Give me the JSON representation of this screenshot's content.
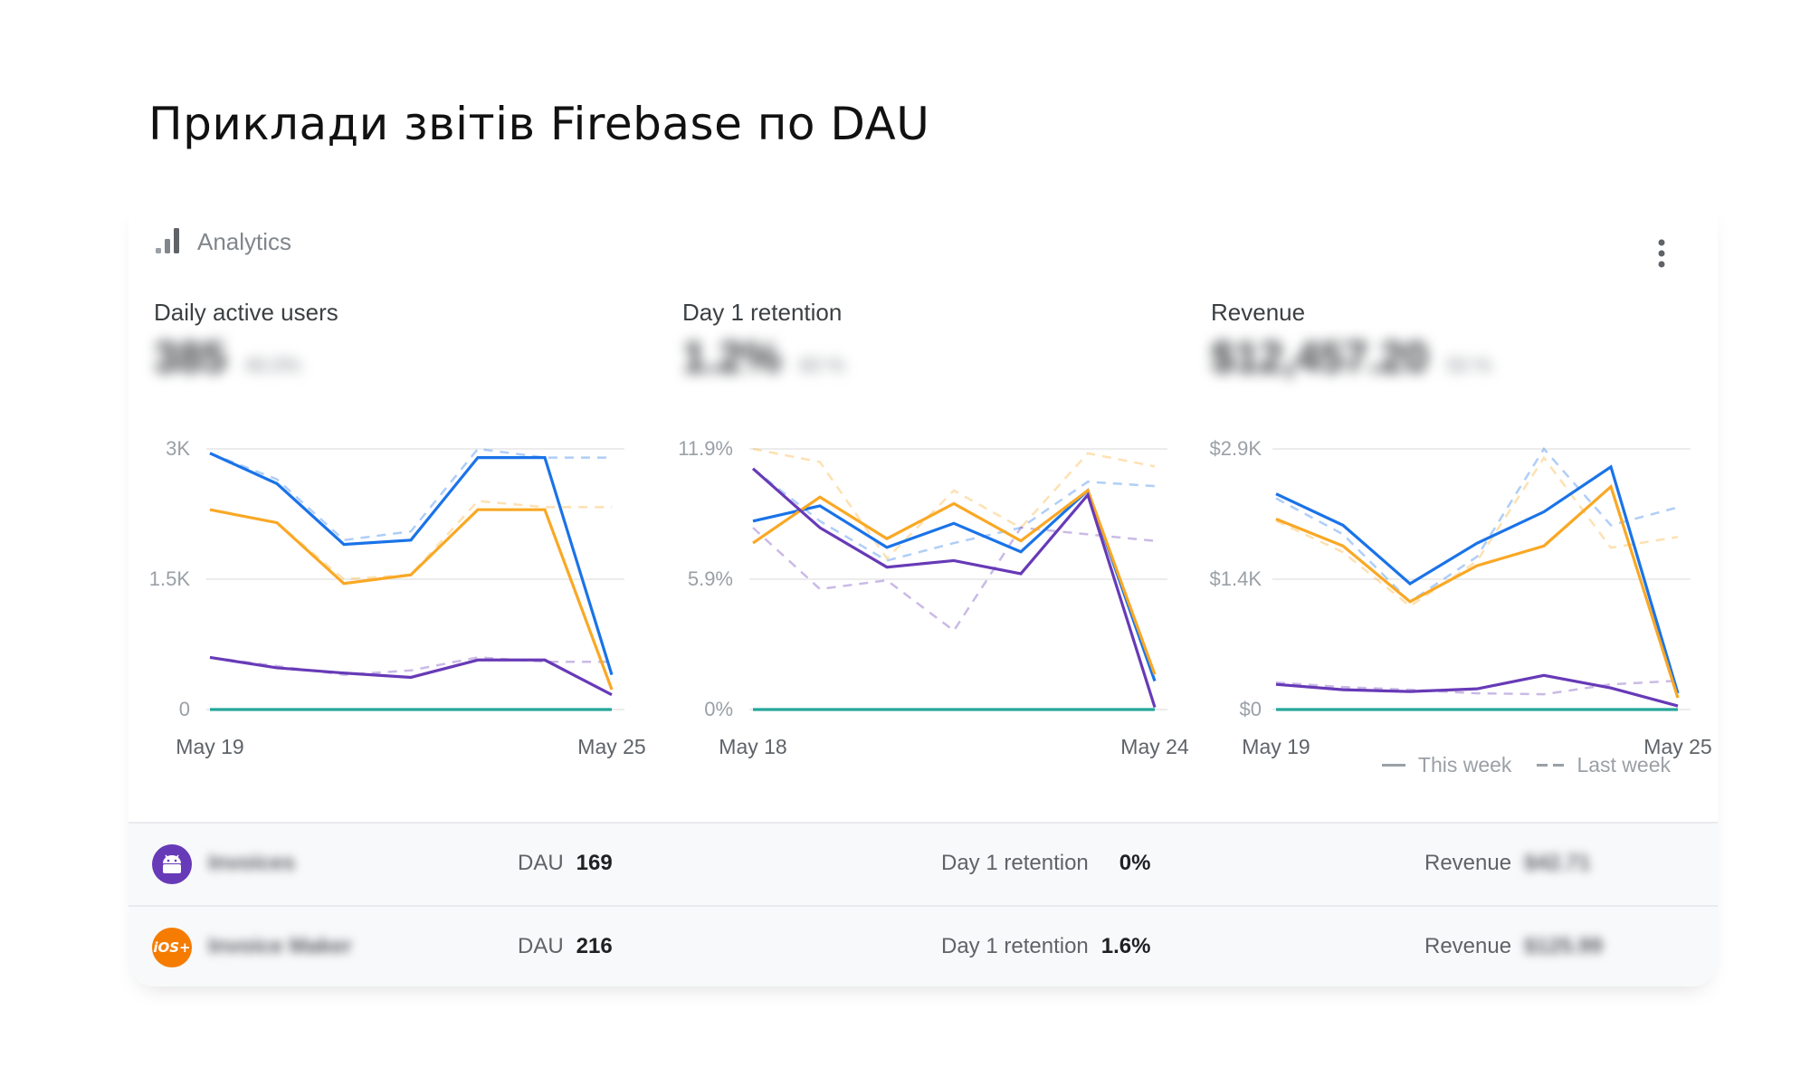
{
  "page_title": "Приклади звітів Firebase по DAU",
  "card": {
    "header_label": "Analytics",
    "menu_icon": "more-vert-icon"
  },
  "colors": {
    "blue": "#1a73e8",
    "orange": "#f9a825",
    "purple": "#673ab7",
    "teal": "#26a69a",
    "grid": "#e0e0e0"
  },
  "charts": [
    {
      "title": "Daily active users",
      "value": "385",
      "delta": "46.0%",
      "y_ticks": [
        "3K",
        "1.5K",
        "0"
      ],
      "x_labels": [
        "May 19",
        "May 25"
      ]
    },
    {
      "title": "Day 1 retention",
      "value": "1.2%",
      "delta": "60 %",
      "y_ticks": [
        "11.9%",
        "5.9%",
        "0%"
      ],
      "x_labels": [
        "May 18",
        "May 24"
      ]
    },
    {
      "title": "Revenue",
      "value": "$12,457.20",
      "delta": "50 %",
      "y_ticks": [
        "$2.9K",
        "$1.4K",
        "$0"
      ],
      "x_labels": [
        "May 19",
        "May 25"
      ]
    }
  ],
  "chart_data": [
    {
      "type": "line",
      "title": "Daily active users",
      "ylim": [
        0,
        3000
      ],
      "x": [
        0,
        1,
        2,
        3,
        4,
        5,
        6
      ],
      "series": [
        {
          "values": [
            2950,
            2600,
            1900,
            1950,
            2900,
            2900,
            400
          ],
          "color": "#1a73e8",
          "style": "solid"
        },
        {
          "values": [
            2300,
            2150,
            1450,
            1550,
            2300,
            2300,
            230
          ],
          "color": "#f9a825",
          "style": "solid"
        },
        {
          "values": [
            600,
            480,
            420,
            370,
            570,
            570,
            170
          ],
          "color": "#673ab7",
          "style": "solid"
        },
        {
          "values": [
            0,
            0,
            0,
            0,
            0,
            0,
            0
          ],
          "color": "#26a69a",
          "style": "solid"
        },
        {
          "values": [
            2950,
            2650,
            1950,
            2050,
            3000,
            2900,
            2900
          ],
          "color": "#1a73e8",
          "style": "dashed"
        },
        {
          "values": [
            2300,
            2150,
            1500,
            1550,
            2400,
            2330,
            2330
          ],
          "color": "#f9a825",
          "style": "dashed"
        },
        {
          "values": [
            600,
            500,
            400,
            450,
            600,
            550,
            550
          ],
          "color": "#673ab7",
          "style": "dashed"
        }
      ]
    },
    {
      "type": "line",
      "title": "Day 1 retention",
      "ylim": [
        0,
        11.9
      ],
      "x": [
        0,
        1,
        2,
        3,
        4,
        5,
        6
      ],
      "series": [
        {
          "values": [
            8.6,
            9.3,
            7.4,
            8.5,
            7.2,
            10.0,
            1.3
          ],
          "color": "#1a73e8",
          "style": "solid"
        },
        {
          "values": [
            7.6,
            9.7,
            7.8,
            9.4,
            7.7,
            10.0,
            1.6
          ],
          "color": "#f9a825",
          "style": "solid"
        },
        {
          "values": [
            11.0,
            8.3,
            6.5,
            6.8,
            6.2,
            9.8,
            0.1
          ],
          "color": "#673ab7",
          "style": "solid"
        },
        {
          "values": [
            0,
            0,
            0,
            0,
            0,
            0,
            0
          ],
          "color": "#26a69a",
          "style": "solid"
        },
        {
          "values": [
            11.0,
            8.6,
            6.8,
            7.6,
            8.3,
            10.4,
            10.2
          ],
          "color": "#1a73e8",
          "style": "dashed"
        },
        {
          "values": [
            11.9,
            11.3,
            6.9,
            10.0,
            8.3,
            11.7,
            11.1
          ],
          "color": "#f9a825",
          "style": "dashed"
        },
        {
          "values": [
            8.3,
            5.5,
            5.9,
            3.6,
            8.3,
            8.0,
            7.7
          ],
          "color": "#673ab7",
          "style": "dashed"
        }
      ]
    },
    {
      "type": "line",
      "title": "Revenue",
      "ylim": [
        0,
        2900
      ],
      "x": [
        0,
        1,
        2,
        3,
        4,
        5,
        6
      ],
      "series": [
        {
          "values": [
            2400,
            2050,
            1400,
            1850,
            2200,
            2700,
            180
          ],
          "color": "#1a73e8",
          "style": "solid"
        },
        {
          "values": [
            2120,
            1820,
            1200,
            1600,
            1820,
            2480,
            130
          ],
          "color": "#f9a825",
          "style": "solid"
        },
        {
          "values": [
            280,
            220,
            200,
            230,
            380,
            240,
            40
          ],
          "color": "#673ab7",
          "style": "solid"
        },
        {
          "values": [
            0,
            0,
            0,
            0,
            0,
            0,
            0
          ],
          "color": "#26a69a",
          "style": "solid"
        },
        {
          "values": [
            2350,
            1950,
            1200,
            1700,
            2900,
            2050,
            2250
          ],
          "color": "#1a73e8",
          "style": "dashed"
        },
        {
          "values": [
            2100,
            1750,
            1150,
            1650,
            2800,
            1800,
            1920
          ],
          "color": "#f9a825",
          "style": "dashed"
        },
        {
          "values": [
            300,
            250,
            220,
            180,
            170,
            280,
            320
          ],
          "color": "#673ab7",
          "style": "dashed"
        }
      ]
    }
  ],
  "legend": {
    "this_week": "This week",
    "last_week": "Last week"
  },
  "apps": [
    {
      "icon": "android-icon",
      "icon_color": "#673ab7",
      "name": "Invoices",
      "dau_label": "DAU",
      "dau_value": "169",
      "retention_label": "Day 1 retention",
      "retention_value": "0%",
      "revenue_label": "Revenue",
      "revenue_value": "$42.71"
    },
    {
      "icon": "ios-icon",
      "icon_color": "#f57c00",
      "name": "Invoice Maker",
      "dau_label": "DAU",
      "dau_value": "216",
      "retention_label": "Day 1 retention",
      "retention_value": "1.6%",
      "revenue_label": "Revenue",
      "revenue_value": "$125.99"
    }
  ]
}
